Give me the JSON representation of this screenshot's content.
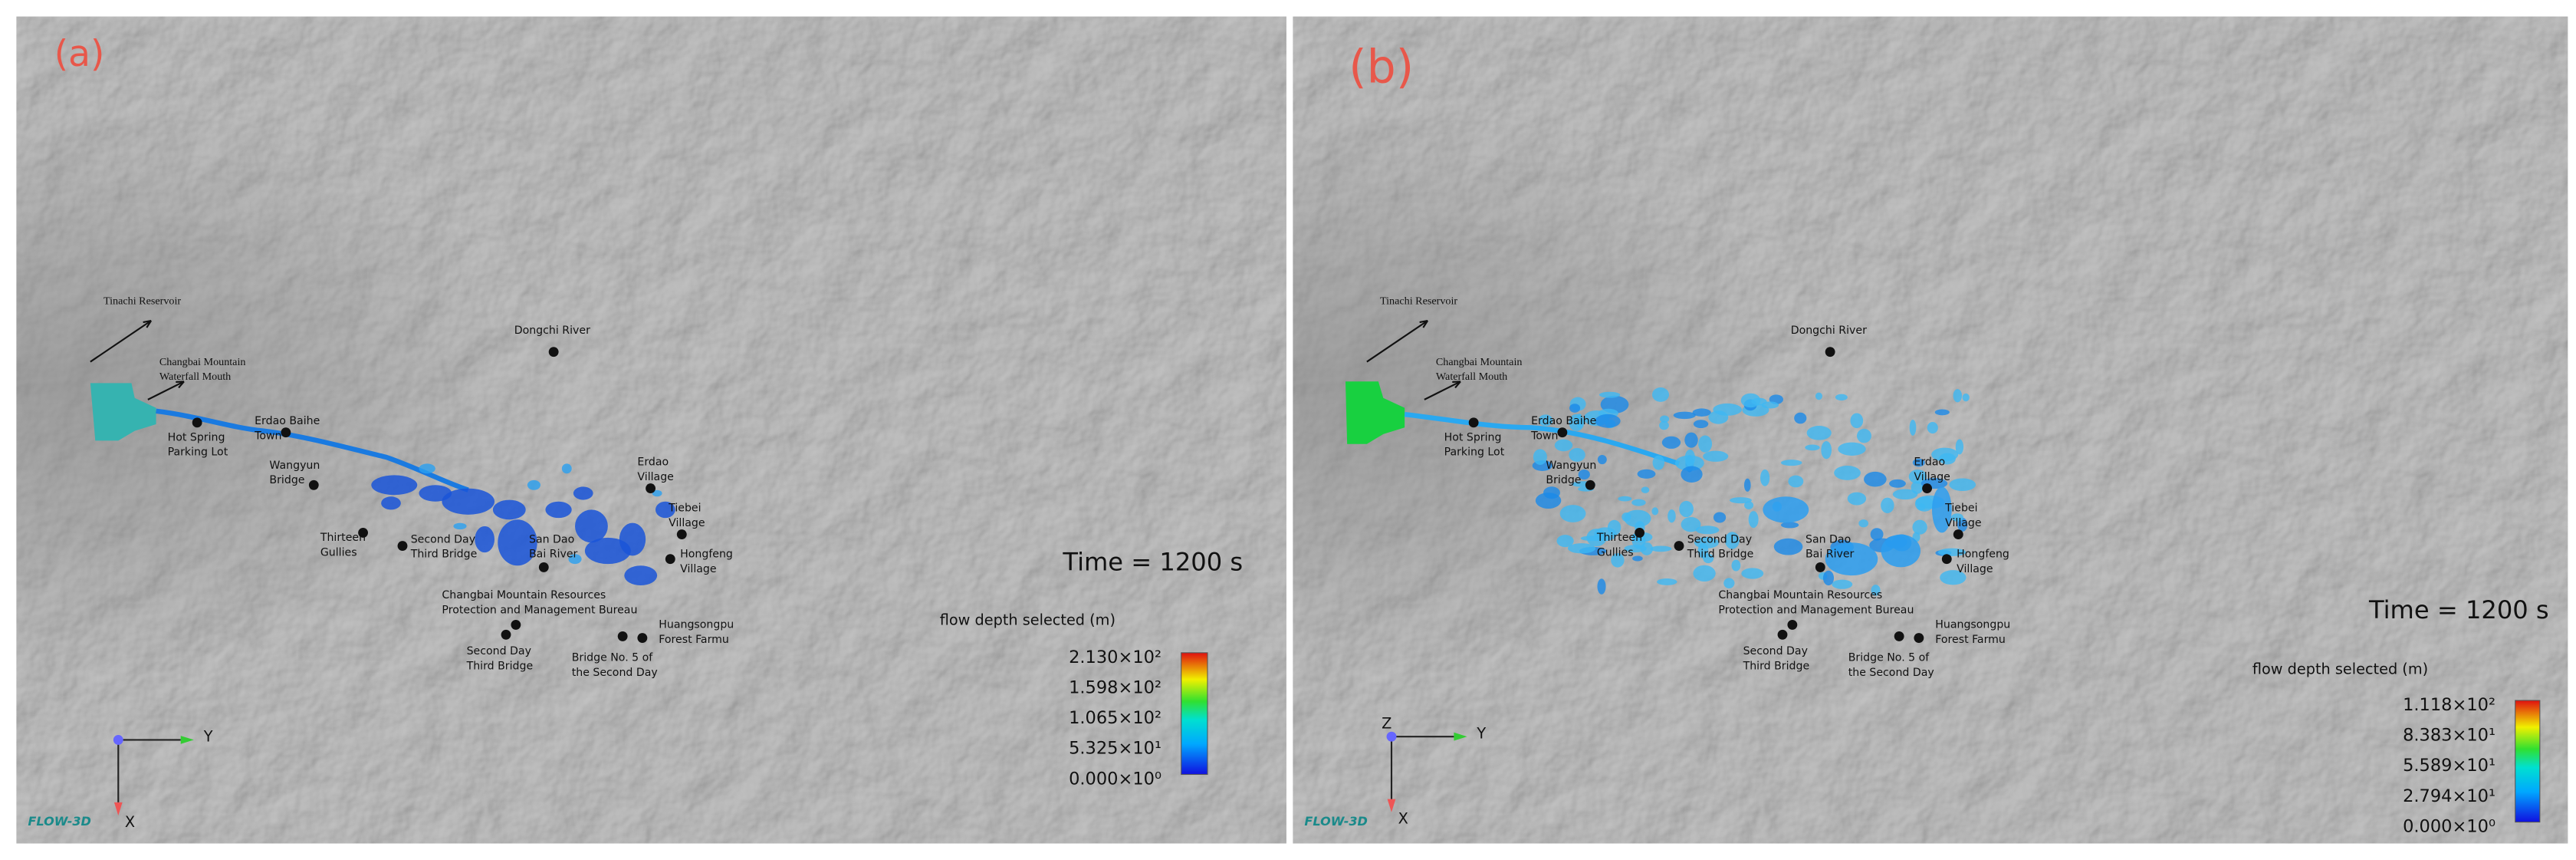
{
  "panels": [
    {
      "label": "(a)",
      "places": [
        {
          "lines": [
            "Tinachi Reservoir"
          ]
        },
        {
          "lines": [
            "Changbai Mountain",
            "Waterfall Mouth"
          ]
        },
        {
          "lines": [
            "Hot Spring",
            "Parking Lot"
          ]
        },
        {
          "lines": [
            "Erdao Baihe",
            "Town"
          ]
        },
        {
          "lines": [
            "Wangyun",
            "Bridge"
          ]
        },
        {
          "lines": [
            "Dongchi River"
          ]
        },
        {
          "lines": [
            "Erdao",
            "Village"
          ]
        },
        {
          "lines": [
            "Tiebei",
            "Village"
          ]
        },
        {
          "lines": [
            "Hongfeng",
            "Village"
          ]
        },
        {
          "lines": [
            "Thirteen",
            "Gullies"
          ]
        },
        {
          "lines": [
            "Second Day",
            "Third Bridge"
          ]
        },
        {
          "lines": [
            "San Dao",
            "Bai River"
          ]
        },
        {
          "lines": [
            "Changbai Mountain Resources",
            "Protection and Management Bureau"
          ]
        },
        {
          "lines": [
            "Second Day",
            "Third Bridge"
          ]
        },
        {
          "lines": [
            "Bridge No. 5 of",
            "the Second Day"
          ]
        },
        {
          "lines": [
            "Huangsongpu",
            "Forest Farmu"
          ]
        }
      ],
      "time": "Time = 1200 s",
      "legend_title": "flow depth selected (m)",
      "colorbar_ticks": [
        "2.130×10²",
        "1.598×10²",
        "1.065×10²",
        "5.325×10¹",
        "0.000×10⁰"
      ],
      "axes": [
        "Y",
        "X"
      ],
      "logo": "FLOW-3D"
    },
    {
      "label": "(b)",
      "places": [
        {
          "lines": [
            "Tinachi Reservoir"
          ]
        },
        {
          "lines": [
            "Changbai Mountain",
            "Waterfall Mouth"
          ]
        },
        {
          "lines": [
            "Hot Spring",
            "Parking Lot"
          ]
        },
        {
          "lines": [
            "Erdao Baihe",
            "Town"
          ]
        },
        {
          "lines": [
            "Wangyun",
            "Bridge"
          ]
        },
        {
          "lines": [
            "Dongchi River"
          ]
        },
        {
          "lines": [
            "Erdao",
            "Village"
          ]
        },
        {
          "lines": [
            "Tiebei",
            "Village"
          ]
        },
        {
          "lines": [
            "Hongfeng",
            "Village"
          ]
        },
        {
          "lines": [
            "Thirteen",
            "Gullies"
          ]
        },
        {
          "lines": [
            "Second Day",
            "Third Bridge"
          ]
        },
        {
          "lines": [
            "San Dao",
            "Bai River"
          ]
        },
        {
          "lines": [
            "Changbai Mountain Resources",
            "Protection and Management Bureau"
          ]
        },
        {
          "lines": [
            "Second Day",
            "Third Bridge"
          ]
        },
        {
          "lines": [
            "Bridge No. 5 of",
            "the Second Day"
          ]
        },
        {
          "lines": [
            "Huangsongpu",
            "Forest Farmu"
          ]
        }
      ],
      "time": "Time = 1200 s",
      "legend_title": "flow depth selected (m)",
      "colorbar_ticks": [
        "1.118×10²",
        "8.383×10¹",
        "5.589×10¹",
        "2.794×10¹",
        "0.000×10⁰"
      ],
      "axes": [
        "Y",
        "X",
        "Z"
      ],
      "logo": "FLOW-3D"
    }
  ]
}
